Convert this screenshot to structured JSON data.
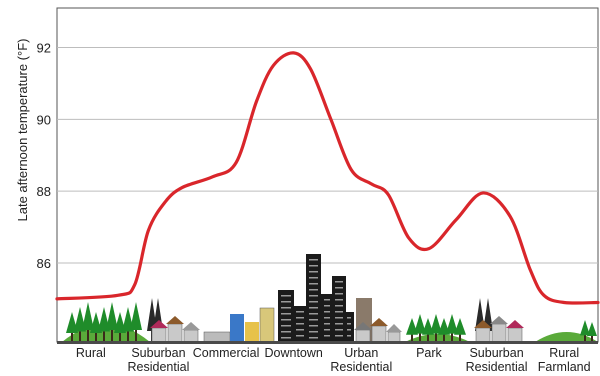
{
  "chart_data": {
    "type": "line",
    "title": "",
    "ylabel": "Late afternoon temperature (°F)",
    "xlabel": "",
    "ylim": [
      83.8,
      93.1
    ],
    "yticks": [
      86,
      88,
      90,
      92
    ],
    "grid": true,
    "categories": [
      [
        "Rural"
      ],
      [
        "Suburban",
        "Residential"
      ],
      [
        "Commercial"
      ],
      [
        "Downtown"
      ],
      [
        "Urban",
        "Residential"
      ],
      [
        "Park"
      ],
      [
        "Suburban",
        "Residential"
      ],
      [
        "Rural",
        "Farmland"
      ]
    ],
    "series": [
      {
        "color": "#d9262b",
        "points": [
          [
            0.0,
            85.0
          ],
          [
            0.9,
            85.1
          ],
          [
            1.15,
            85.4
          ],
          [
            1.35,
            86.9
          ],
          [
            1.6,
            87.7
          ],
          [
            1.85,
            88.1
          ],
          [
            2.3,
            88.4
          ],
          [
            2.65,
            88.8
          ],
          [
            2.95,
            90.5
          ],
          [
            3.2,
            91.5
          ],
          [
            3.5,
            91.85
          ],
          [
            3.75,
            91.4
          ],
          [
            4.05,
            90.0
          ],
          [
            4.35,
            88.6
          ],
          [
            4.65,
            88.2
          ],
          [
            4.9,
            87.9
          ],
          [
            5.2,
            86.7
          ],
          [
            5.5,
            86.4
          ],
          [
            5.9,
            87.2
          ],
          [
            6.3,
            87.95
          ],
          [
            6.7,
            87.3
          ],
          [
            7.0,
            85.8
          ],
          [
            7.2,
            85.1
          ],
          [
            7.5,
            84.9
          ],
          [
            8.0,
            84.9
          ]
        ]
      }
    ],
    "illustration": {
      "type": "city-cross-section",
      "scenes": [
        "tree-cluster",
        "houses-with-trees",
        "shops",
        "skyscrapers",
        "apartment-houses",
        "park-trees",
        "houses-with-trees",
        "farm-field"
      ],
      "colors": {
        "tree": "#1f8c2a",
        "hill": "#5aaa3a",
        "ground": "#4a4a4a",
        "building_dark": "#1b1b1b",
        "house_roof": "#8c5a2b",
        "house_roof_alt": "#b02a5a",
        "house_wall": "#c9c9c9",
        "shop_blue": "#3a78c8",
        "shop_yellow": "#e7c24a"
      }
    }
  }
}
